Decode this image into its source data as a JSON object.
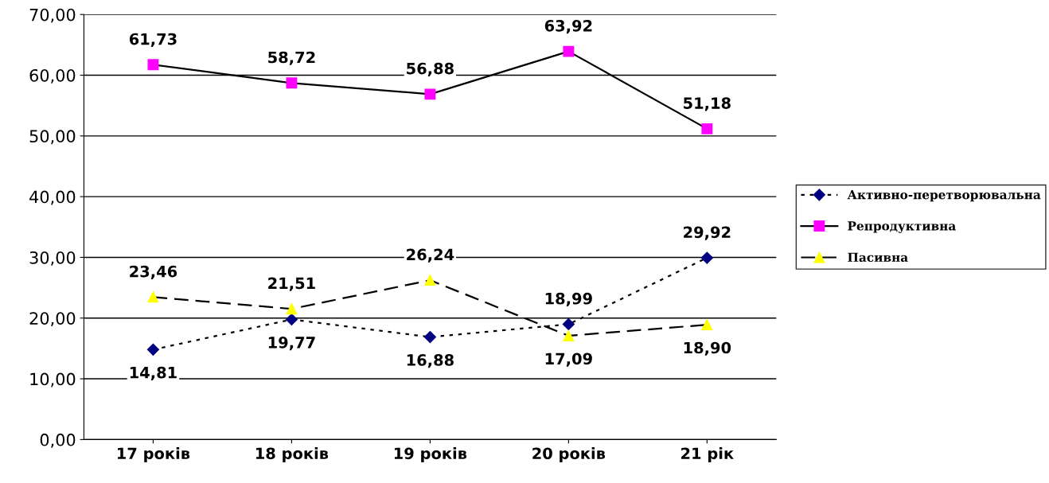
{
  "chart_data": {
    "type": "line",
    "categories": [
      "17 років",
      "18 років",
      "19 років",
      "20 років",
      "21 рік"
    ],
    "series": [
      {
        "name": "Активно-перетворювальна",
        "color": "#000080",
        "values": [
          14.81,
          19.77,
          16.88,
          18.99,
          29.92
        ],
        "value_labels": [
          "14,81",
          "19,77",
          "16,88",
          "18,99",
          "29,92"
        ],
        "marker": "diamond",
        "line_style": "dotted"
      },
      {
        "name": "Репродуктивна",
        "color": "#ff00ff",
        "values": [
          61.73,
          58.72,
          56.88,
          63.92,
          51.18
        ],
        "value_labels": [
          "61,73",
          "58,72",
          "56,88",
          "63,92",
          "51,18"
        ],
        "marker": "square",
        "line_style": "solid"
      },
      {
        "name": "Пасивна",
        "color": "#ffff00",
        "values": [
          23.46,
          21.51,
          26.24,
          17.09,
          18.9
        ],
        "value_labels": [
          "23,46",
          "21,51",
          "26,24",
          "17,09",
          "18,90"
        ],
        "marker": "triangle",
        "line_style": "dashed"
      }
    ],
    "ylim": [
      0,
      70
    ],
    "yticks": [
      {
        "value": 0,
        "label": "0,00"
      },
      {
        "value": 10,
        "label": "10,00"
      },
      {
        "value": 20,
        "label": "20,00"
      },
      {
        "value": 30,
        "label": "30,00"
      },
      {
        "value": 40,
        "label": "40,00"
      },
      {
        "value": 50,
        "label": "50,00"
      },
      {
        "value": 60,
        "label": "60,00"
      },
      {
        "value": 70,
        "label": "70,00"
      }
    ],
    "grid": "y",
    "legend": "right"
  }
}
